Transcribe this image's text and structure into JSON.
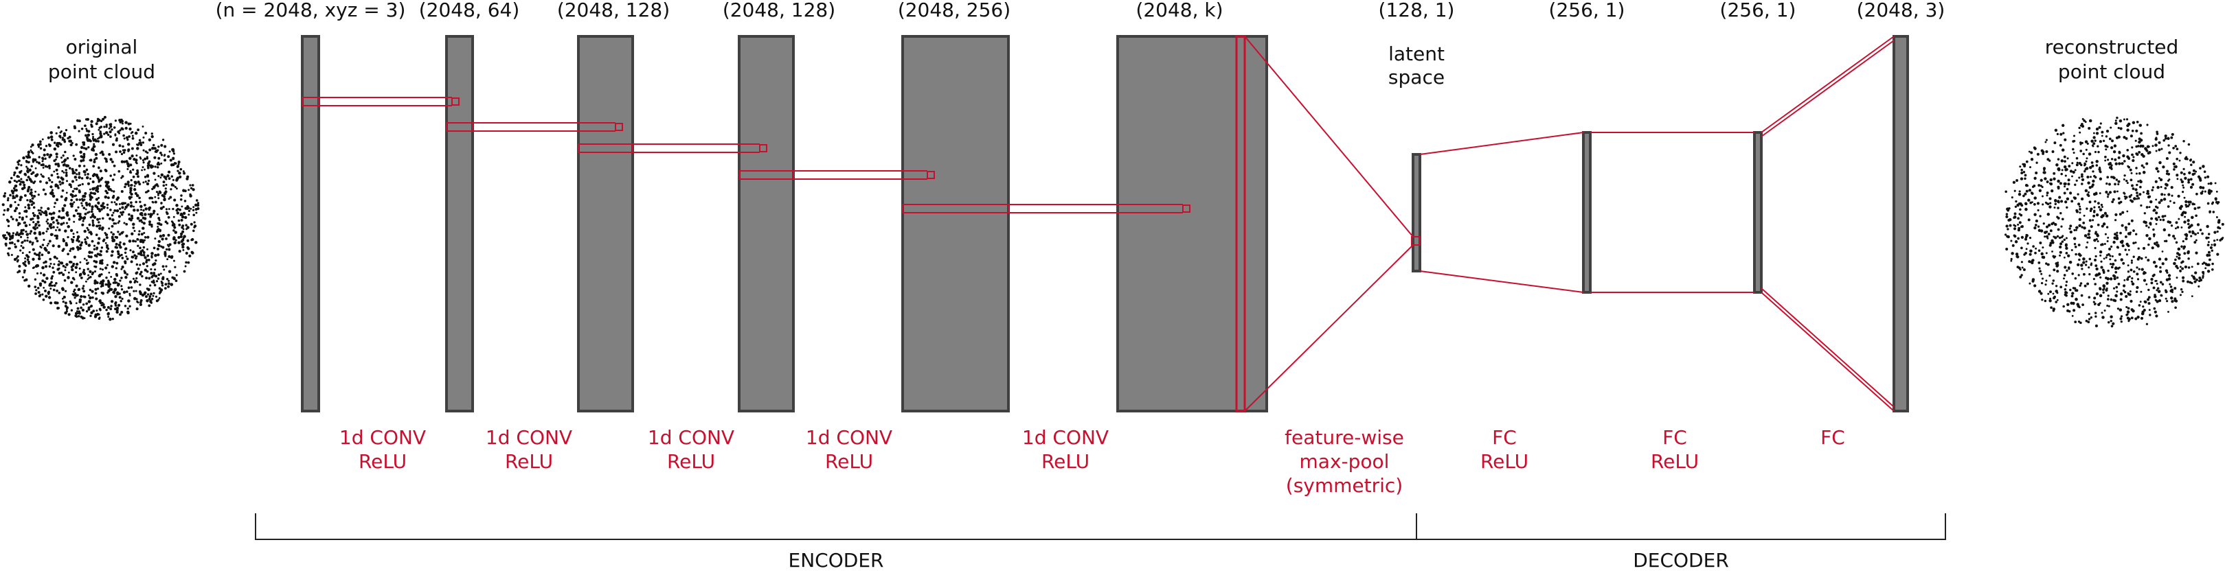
{
  "colors": {
    "layer_fill": "#808080",
    "layer_stroke": "#404040",
    "accent_red": "#c8102e",
    "text": "#111111"
  },
  "input": {
    "label_line1": "original",
    "label_line2": "point cloud"
  },
  "output": {
    "label_line1": "reconstructed",
    "label_line2": "point cloud"
  },
  "latent": {
    "label_line1": "latent",
    "label_line2": "space"
  },
  "dims": {
    "d0": "(n = 2048,  xyz = 3)",
    "d1": "(2048, 64)",
    "d2": "(2048, 128)",
    "d3": "(2048, 128)",
    "d4": "(2048, 256)",
    "d5": "(2048, k)",
    "d6": "(128, 1)",
    "d7": "(256, 1)",
    "d8": "(256, 1)",
    "d9": "(2048, 3)"
  },
  "ops": {
    "conv1": {
      "line1": "1d CONV",
      "line2": "ReLU"
    },
    "conv2": {
      "line1": "1d CONV",
      "line2": "ReLU"
    },
    "conv3": {
      "line1": "1d CONV",
      "line2": "ReLU"
    },
    "conv4": {
      "line1": "1d CONV",
      "line2": "ReLU"
    },
    "conv5": {
      "line1": "1d CONV",
      "line2": "ReLU"
    },
    "pool": {
      "line1": "feature-wise",
      "line2": "max-pool",
      "line3": "(symmetric)"
    },
    "fc1": {
      "line1": "FC",
      "line2": "ReLU"
    },
    "fc2": {
      "line1": "FC",
      "line2": "ReLU"
    },
    "fc3": {
      "line1": "FC"
    }
  },
  "sections": {
    "encoder": "ENCODER",
    "decoder": "DECODER"
  }
}
